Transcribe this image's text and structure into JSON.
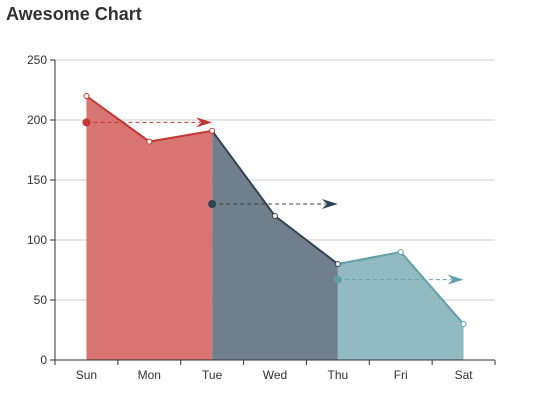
{
  "chart_data": {
    "type": "area",
    "title": "Awesome Chart",
    "categories": [
      "Sun",
      "Mon",
      "Tue",
      "Wed",
      "Thu",
      "Fri",
      "Sat"
    ],
    "values": [
      220,
      182,
      191,
      120,
      80,
      90,
      30
    ],
    "ylim": [
      0,
      250
    ],
    "yticks": [
      0,
      50,
      100,
      150,
      200,
      250
    ],
    "grid": true,
    "segments": [
      {
        "from": "Sun",
        "to": "Tue",
        "line_color": "#c23531",
        "fill_color": "#d87472"
      },
      {
        "from": "Tue",
        "to": "Thu",
        "line_color": "#2f4554",
        "fill_color": "#707f8b"
      },
      {
        "from": "Thu",
        "to": "Sat",
        "line_color": "#61a0a8",
        "fill_color": "#91bbc0"
      }
    ],
    "arrows": [
      {
        "from": "Sun",
        "to": "Tue",
        "y": 198,
        "color": "#c23531"
      },
      {
        "from": "Tue",
        "to": "Thu",
        "y": 130,
        "color": "#2f4554"
      },
      {
        "from": "Thu",
        "to": "Sat",
        "y": 67,
        "color": "#61a0a8"
      }
    ],
    "colors": {
      "axis": "#333333",
      "grid": "#cccccc",
      "point_fill": "#ffffff"
    }
  }
}
